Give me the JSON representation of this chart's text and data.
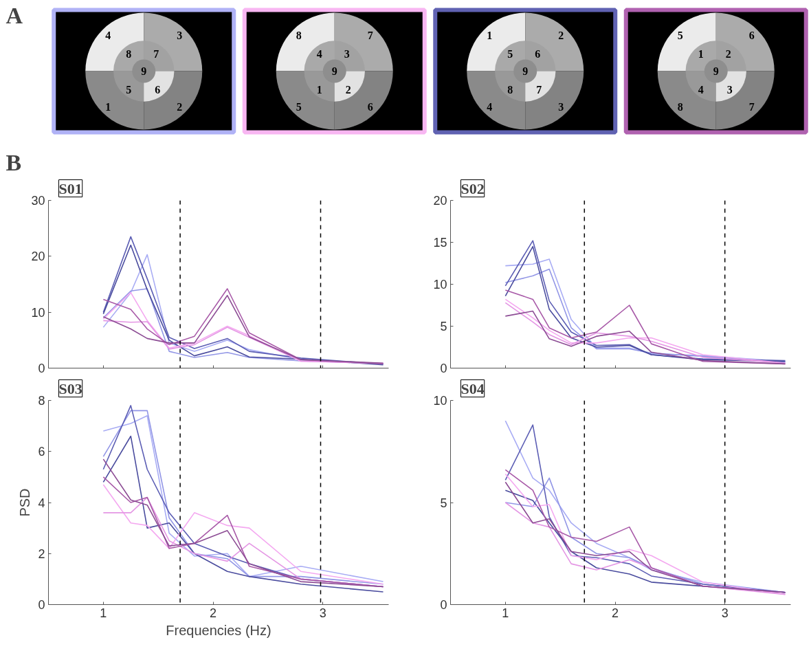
{
  "chart_data": [
    {
      "type": "other",
      "title": "A",
      "colors": [
        "#b0b2f6",
        "#f8b6f2",
        "#6062b2",
        "#b062b0"
      ],
      "annotations": [
        "4",
        "3",
        "8",
        "7",
        "9",
        "5",
        "6",
        "1",
        "2",
        "8",
        "7",
        "4",
        "3",
        "9",
        "1",
        "2",
        "5",
        "6",
        "1",
        "2",
        "5",
        "6",
        "9",
        "8",
        "7",
        "4",
        "3",
        "5",
        "6",
        "1",
        "2",
        "9",
        "4",
        "3",
        "8",
        "7"
      ]
    },
    {
      "type": "line",
      "title": "S01",
      "annotations": [
        "B"
      ],
      "x": [
        1,
        1.25,
        1.4,
        1.6,
        1.83,
        2.13,
        2.33,
        2.8,
        3.55
      ],
      "xlim": [
        0.5,
        3.6
      ],
      "xticks": [
        1,
        2,
        3
      ],
      "ylim": [
        0,
        30
      ],
      "yticks": [
        0,
        10,
        20,
        30
      ],
      "grid": false,
      "tick_labels": "y",
      "marker": "none",
      "line_style": "solid",
      "ref_lines": [
        {
          "axis": "x",
          "value": 1.7,
          "color": "#000000",
          "line_style": "dashed"
        },
        {
          "axis": "x",
          "value": 2.98,
          "color": "#000000",
          "line_style": "dashed"
        }
      ],
      "series": [
        {
          "color": "#a8acf4",
          "values": [
            7.3,
            13.5,
            20.3,
            4.5,
            3,
            5,
            3.3,
            1.5,
            0.8
          ]
        },
        {
          "color": "#9296e6",
          "values": [
            9,
            13.8,
            14.2,
            3,
            1.9,
            2.8,
            1.9,
            1.3,
            0.8
          ]
        },
        {
          "color": "#5c5eb4",
          "values": [
            10,
            23.5,
            16,
            5.5,
            3.5,
            5.3,
            3,
            1.8,
            0.7
          ]
        },
        {
          "color": "#4a4c9e",
          "values": [
            9.7,
            22,
            14,
            5,
            2.2,
            3.8,
            2,
            1.6,
            0.6
          ]
        },
        {
          "color": "#f4a8f0",
          "values": [
            8.8,
            13.5,
            8.5,
            3.6,
            4.5,
            7.5,
            5.8,
            1.2,
            0.9
          ]
        },
        {
          "color": "#e496e4",
          "values": [
            8.5,
            8.2,
            8.3,
            3.4,
            4.2,
            7.3,
            5.5,
            1.3,
            0.8
          ]
        },
        {
          "color": "#a85aa8",
          "values": [
            12.3,
            10.5,
            7,
            4.2,
            5.7,
            14.2,
            6.3,
            1.5,
            0.8
          ]
        },
        {
          "color": "#8c4c94",
          "values": [
            9.2,
            7,
            5.3,
            4.5,
            4.5,
            13,
            5.6,
            1.5,
            0.9
          ]
        }
      ]
    },
    {
      "type": "line",
      "title": "S02",
      "x": [
        1,
        1.25,
        1.4,
        1.6,
        1.83,
        2.13,
        2.33,
        2.8,
        3.55
      ],
      "xlim": [
        0.5,
        3.6
      ],
      "xticks": [
        1,
        2,
        3
      ],
      "ylim": [
        0,
        20
      ],
      "yticks": [
        0,
        5,
        10,
        15,
        20
      ],
      "grid": false,
      "tick_labels": "y",
      "marker": "none",
      "line_style": "solid",
      "ref_lines": [
        {
          "axis": "x",
          "value": 1.72,
          "color": "#000000",
          "line_style": "dashed"
        },
        {
          "axis": "x",
          "value": 3.0,
          "color": "#000000",
          "line_style": "dashed"
        }
      ],
      "series": [
        {
          "color": "#a8acf4",
          "values": [
            12.2,
            12.4,
            13,
            5.8,
            2.4,
            2.4,
            1.7,
            1.5,
            0.8
          ]
        },
        {
          "color": "#9296e6",
          "values": [
            10.2,
            11,
            11.8,
            4.8,
            2.3,
            2.3,
            1.8,
            1.4,
            0.7
          ]
        },
        {
          "color": "#5c5eb4",
          "values": [
            9.8,
            15.2,
            8,
            4.3,
            2.7,
            2.8,
            1.6,
            1.1,
            0.9
          ]
        },
        {
          "color": "#4a4c9e",
          "values": [
            8.6,
            14.5,
            7,
            3.6,
            2.5,
            2.7,
            1.6,
            1.0,
            0.8
          ]
        },
        {
          "color": "#f4a8f0",
          "values": [
            8.2,
            6,
            4.5,
            3,
            3,
            3.6,
            3.6,
            1.6,
            0.6
          ]
        },
        {
          "color": "#e496e4",
          "values": [
            7.8,
            5.5,
            4,
            2.8,
            4.2,
            3.8,
            3.2,
            1.3,
            0.6
          ]
        },
        {
          "color": "#a85aa8",
          "values": [
            9.3,
            8.2,
            4.8,
            3.6,
            4.3,
            7.5,
            2.9,
            0.8,
            0.5
          ]
        },
        {
          "color": "#8c4c94",
          "values": [
            6.2,
            6.8,
            3.5,
            2.6,
            3.8,
            4.4,
            1.9,
            0.9,
            0.5
          ]
        }
      ]
    },
    {
      "type": "line",
      "title": "S03",
      "xlabel": "Frequencies (Hz)",
      "ylabel": "PSD",
      "x": [
        1,
        1.25,
        1.4,
        1.6,
        1.83,
        2.13,
        2.33,
        2.8,
        3.55
      ],
      "xlim": [
        0.5,
        3.6
      ],
      "xticks": [
        1,
        2,
        3
      ],
      "ylim": [
        0,
        8
      ],
      "yticks": [
        0,
        2,
        4,
        6,
        8
      ],
      "grid": false,
      "marker": "none",
      "line_style": "solid",
      "ref_lines": [
        {
          "axis": "x",
          "value": 1.7,
          "color": "#000000",
          "line_style": "dashed"
        },
        {
          "axis": "x",
          "value": 2.98,
          "color": "#000000",
          "line_style": "dashed"
        }
      ],
      "series": [
        {
          "color": "#a8acf4",
          "values": [
            6.8,
            7.1,
            7.4,
            2.8,
            1.9,
            2.0,
            1.1,
            1.5,
            0.9
          ]
        },
        {
          "color": "#9296e6",
          "values": [
            5.8,
            7.6,
            7.6,
            3.4,
            2.0,
            1.8,
            1.1,
            1.1,
            0.8
          ]
        },
        {
          "color": "#5c5eb4",
          "values": [
            5.3,
            7.8,
            5.3,
            3.6,
            2.4,
            1.9,
            1.6,
            1.0,
            0.7
          ]
        },
        {
          "color": "#4a4c9e",
          "values": [
            4.8,
            6.6,
            3.0,
            3.2,
            2.0,
            1.3,
            1.1,
            0.8,
            0.5
          ]
        },
        {
          "color": "#f4a8f0",
          "values": [
            4.7,
            3.2,
            3.1,
            2.2,
            3.6,
            3.1,
            3.0,
            1.3,
            0.8
          ]
        },
        {
          "color": "#e496e4",
          "values": [
            3.6,
            3.6,
            4.2,
            2.5,
            2.0,
            1.7,
            2.4,
            1.0,
            0.7
          ]
        },
        {
          "color": "#a85aa8",
          "values": [
            5.0,
            4.0,
            4.2,
            2.2,
            2.4,
            3.5,
            1.5,
            1.0,
            0.7
          ]
        },
        {
          "color": "#8c4c94",
          "values": [
            5.7,
            4.1,
            3.9,
            2.3,
            2.4,
            2.9,
            1.6,
            0.9,
            0.7
          ]
        }
      ]
    },
    {
      "type": "line",
      "title": "S04",
      "x": [
        1,
        1.25,
        1.4,
        1.6,
        1.83,
        2.13,
        2.33,
        2.8,
        3.55
      ],
      "xlim": [
        0.5,
        3.6
      ],
      "xticks": [
        1,
        2,
        3
      ],
      "ylim": [
        0,
        10
      ],
      "yticks": [
        0,
        5,
        10
      ],
      "grid": false,
      "marker": "none",
      "line_style": "solid",
      "ref_lines": [
        {
          "axis": "x",
          "value": 1.72,
          "color": "#000000",
          "line_style": "dashed"
        },
        {
          "axis": "x",
          "value": 3.0,
          "color": "#000000",
          "line_style": "dashed"
        }
      ],
      "series": [
        {
          "color": "#a8acf4",
          "values": [
            9.0,
            6.2,
            5.6,
            4.0,
            3.0,
            2.3,
            1.7,
            1.1,
            0.6
          ]
        },
        {
          "color": "#9296e6",
          "values": [
            5.0,
            4.8,
            6.2,
            3.3,
            2.5,
            2.3,
            1.8,
            1.0,
            0.6
          ]
        },
        {
          "color": "#5c5eb4",
          "values": [
            6.1,
            8.8,
            4.3,
            2.4,
            2.3,
            2.0,
            1.4,
            1.0,
            0.6
          ]
        },
        {
          "color": "#4a4c9e",
          "values": [
            5.6,
            5.1,
            4.0,
            2.6,
            1.8,
            1.5,
            1.1,
            0.9,
            0.6
          ]
        },
        {
          "color": "#f4a8f0",
          "values": [
            6.4,
            4.8,
            4.9,
            2.4,
            2.2,
            2.7,
            2.4,
            1.1,
            0.5
          ]
        },
        {
          "color": "#e496e4",
          "values": [
            5.0,
            4.0,
            3.8,
            2.0,
            1.7,
            2.2,
            1.8,
            0.9,
            0.5
          ]
        },
        {
          "color": "#a85aa8",
          "values": [
            6.6,
            5.6,
            3.8,
            3.3,
            3.1,
            3.8,
            1.8,
            0.9,
            0.6
          ]
        },
        {
          "color": "#8c4c94",
          "values": [
            6.0,
            4.0,
            4.2,
            2.6,
            2.4,
            2.6,
            1.7,
            0.9,
            0.6
          ]
        }
      ]
    }
  ]
}
